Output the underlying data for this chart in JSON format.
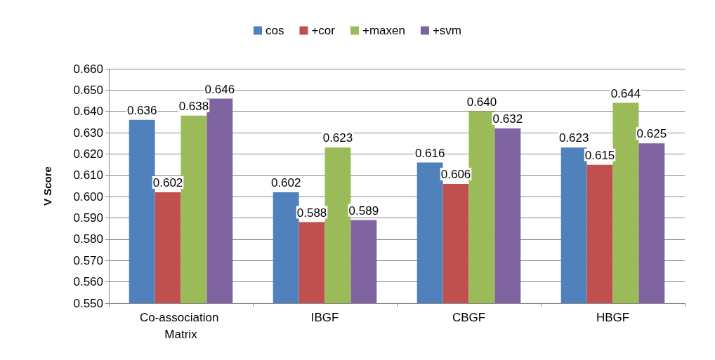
{
  "chart_data": {
    "type": "bar",
    "ylabel": "V Score",
    "categories": [
      "Co-association Matrix",
      "IBGF",
      "CBGF",
      "HBGF"
    ],
    "series": [
      {
        "name": "cos",
        "color": "#4f81bd",
        "values": [
          0.636,
          0.602,
          0.616,
          0.623
        ],
        "value_labels": [
          "0.636",
          "0.602",
          "0.616",
          "0.623"
        ]
      },
      {
        "name": "+cor",
        "color": "#c0504d",
        "values": [
          0.602,
          0.588,
          0.606,
          0.615
        ],
        "value_labels": [
          "0.602",
          "0.588",
          "0.606",
          "0.615"
        ]
      },
      {
        "name": "+maxen",
        "color": "#9bbb59",
        "values": [
          0.638,
          0.623,
          0.64,
          0.644
        ],
        "value_labels": [
          "0.638",
          "0.623",
          "0.640",
          "0.644"
        ]
      },
      {
        "name": "+svm",
        "color": "#8064a2",
        "values": [
          0.646,
          0.589,
          0.632,
          0.625
        ],
        "value_labels": [
          "0.646",
          "0.589",
          "0.632",
          "0.625"
        ]
      }
    ],
    "ylim": [
      0.55,
      0.66
    ],
    "yticks": [
      {
        "value": 0.55,
        "label": "0.550"
      },
      {
        "value": 0.56,
        "label": "0.560"
      },
      {
        "value": 0.57,
        "label": "0.570"
      },
      {
        "value": 0.58,
        "label": "0.580"
      },
      {
        "value": 0.59,
        "label": "0.590"
      },
      {
        "value": 0.6,
        "label": "0.600"
      },
      {
        "value": 0.61,
        "label": "0.610"
      },
      {
        "value": 0.62,
        "label": "0.620"
      },
      {
        "value": 0.63,
        "label": "0.630"
      },
      {
        "value": 0.64,
        "label": "0.640"
      },
      {
        "value": 0.65,
        "label": "0.650"
      },
      {
        "value": 0.66,
        "label": "0.660"
      }
    ],
    "grid": "y",
    "legend": "top"
  }
}
